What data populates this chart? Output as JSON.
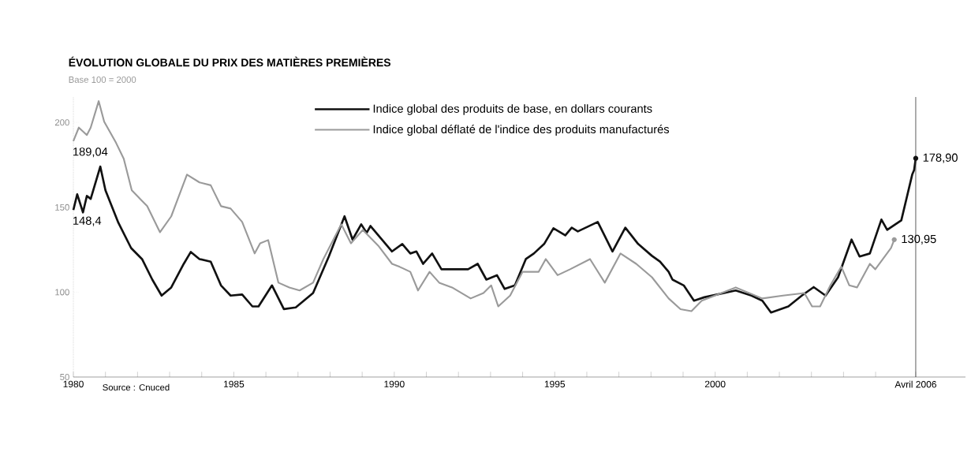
{
  "chart_data": {
    "type": "line",
    "title": "ÉVOLUTION GLOBALE DU PRIX DES MATIÈRES PREMIÈRES",
    "subtitle": "Base 100 = 2000",
    "xlim": [
      1980,
      2007.8
    ],
    "ylim": [
      50,
      215
    ],
    "xticks": [
      {
        "value": 1980,
        "label": "1980"
      },
      {
        "value": 1981,
        "label": null
      },
      {
        "value": 1982,
        "label": null
      },
      {
        "value": 1983,
        "label": null
      },
      {
        "value": 1984,
        "label": null
      },
      {
        "value": 1985,
        "label": "1985"
      },
      {
        "value": 1986,
        "label": null
      },
      {
        "value": 1987,
        "label": null
      },
      {
        "value": 1988,
        "label": null
      },
      {
        "value": 1989,
        "label": null
      },
      {
        "value": 1990,
        "label": "1990"
      },
      {
        "value": 1991,
        "label": null
      },
      {
        "value": 1992,
        "label": null
      },
      {
        "value": 1993,
        "label": null
      },
      {
        "value": 1994,
        "label": null
      },
      {
        "value": 1995,
        "label": "1995"
      },
      {
        "value": 1996,
        "label": null
      },
      {
        "value": 1997,
        "label": null
      },
      {
        "value": 1998,
        "label": null
      },
      {
        "value": 1999,
        "label": null
      },
      {
        "value": 2000,
        "label": "2000"
      },
      {
        "value": 2001,
        "label": null
      },
      {
        "value": 2002,
        "label": null
      },
      {
        "value": 2003,
        "label": null
      },
      {
        "value": 2004,
        "label": null
      },
      {
        "value": 2005,
        "label": null
      },
      {
        "value": 2006.25,
        "label": "Avril 2006"
      }
    ],
    "yticks": [
      50,
      100,
      150,
      200
    ],
    "legend": "top",
    "series": [
      {
        "name": "Indice global des produits de base, en dollars courants",
        "color": "#111111",
        "x": [
          1980,
          1980.12,
          1980.3,
          1980.42,
          1980.54,
          1980.84,
          1981,
          1981.4,
          1981.8,
          1982.14,
          1982.46,
          1982.75,
          1983.05,
          1983.44,
          1983.66,
          1983.93,
          1984.28,
          1984.6,
          1984.9,
          1985.26,
          1985.58,
          1985.77,
          1986.19,
          1986.56,
          1986.93,
          1987.47,
          1987.96,
          1988.45,
          1988.7,
          1988.97,
          1989.14,
          1989.26,
          1989.93,
          1990.25,
          1990.5,
          1990.69,
          1990.9,
          1991.18,
          1991.47,
          1991.97,
          1992.3,
          1992.6,
          1992.87,
          1993.2,
          1993.44,
          1993.76,
          1994.1,
          1994.35,
          1994.67,
          1994.96,
          1995.33,
          1995.53,
          1995.72,
          1996.34,
          1996.8,
          1997.2,
          1997.6,
          1998.03,
          1998.28,
          1998.55,
          1998.67,
          1999.02,
          1999.34,
          1999.66,
          2000.64,
          2001.13,
          2001.47,
          2001.74,
          2002.28,
          2002.7,
          2003.07,
          2003.44,
          2003.83,
          2004.25,
          2004.5,
          2004.82,
          2005.18,
          2005.36,
          2005.8,
          2006.14,
          2006.2,
          2006.25
        ],
        "values": [
          148.4,
          157.7,
          147,
          156.7,
          155,
          174,
          160,
          141,
          126,
          119.5,
          107.4,
          98,
          102.8,
          116.7,
          123.7,
          119.5,
          118,
          104,
          98,
          98.6,
          91.6,
          91.6,
          104,
          90,
          91,
          99.5,
          121,
          144.7,
          131,
          140,
          135,
          139,
          124,
          128.4,
          122.8,
          124,
          116.7,
          122.8,
          113.5,
          113.5,
          113.5,
          116.7,
          107.4,
          110,
          101.9,
          104,
          119.5,
          122.8,
          128.4,
          137.7,
          133.5,
          138,
          135.8,
          141.4,
          124,
          138,
          128.4,
          121.4,
          118,
          112,
          107.4,
          104,
          95,
          97,
          101,
          98,
          95,
          88,
          91.6,
          98,
          103,
          98,
          108.8,
          131,
          121,
          122.8,
          142.8,
          136.7,
          142.3,
          169.3,
          172,
          178.9
        ]
      },
      {
        "name": "Indice global déflaté de l'indice des produits manufacturés",
        "color": "#9a9a9a",
        "x": [
          1980,
          1980.17,
          1980.42,
          1980.54,
          1980.79,
          1980.96,
          1981.33,
          1981.57,
          1981.82,
          1982.3,
          1982.7,
          1983.05,
          1983.54,
          1983.93,
          1984.28,
          1984.6,
          1984.9,
          1985.26,
          1985.65,
          1985.82,
          1986.07,
          1986.39,
          1986.73,
          1987.05,
          1987.47,
          1987.79,
          1988.35,
          1988.65,
          1989.02,
          1989.5,
          1989.93,
          1990.17,
          1990.5,
          1990.74,
          1991.1,
          1991.4,
          1991.8,
          1992.38,
          1992.78,
          1993.02,
          1993.24,
          1993.61,
          1994,
          1994.5,
          1994.72,
          1995.09,
          1995.48,
          1996.1,
          1996.56,
          1997.05,
          1997.54,
          1998.03,
          1998.55,
          1998.92,
          1999.26,
          1999.58,
          2000.64,
          2001.47,
          2002.11,
          2002.78,
          2003.02,
          2003.27,
          2003.59,
          2003.93,
          2004.18,
          2004.42,
          2004.82,
          2004.99,
          2005.48,
          2005.58
        ],
        "values": [
          189.04,
          197,
          192.6,
          197,
          212.6,
          200.5,
          188,
          178.6,
          160,
          150.7,
          135.3,
          144.7,
          169.3,
          164.7,
          163,
          150.7,
          149.3,
          141.4,
          122.8,
          128.8,
          130.7,
          105.6,
          102.8,
          101,
          105.6,
          119.5,
          140,
          128.8,
          136.7,
          127.4,
          116.7,
          114.9,
          112,
          101,
          112,
          105.6,
          102.8,
          96.3,
          99.5,
          104,
          91.6,
          98,
          112,
          112,
          119.5,
          110,
          113.5,
          119.5,
          105.6,
          122.8,
          116.7,
          108.8,
          96.3,
          90,
          88.8,
          95,
          102.8,
          96.3,
          98,
          99.5,
          91.6,
          91.6,
          104,
          115,
          104,
          102.8,
          116.7,
          113.5,
          126,
          130.95
        ]
      }
    ],
    "ref_lines": [
      {
        "axis": "x",
        "value": 2006.25,
        "color": "#333333"
      }
    ],
    "annotations": [
      {
        "text": "148,4",
        "x": 1980,
        "y": 148.4
      },
      {
        "text": "189,04",
        "x": 1980,
        "y": 189.04
      },
      {
        "text": "178,90",
        "x": 2006.25,
        "y": 178.9
      },
      {
        "text": "130,95",
        "x": 2005.58,
        "y": 130.95
      },
      "Source : Cnuced"
    ]
  }
}
